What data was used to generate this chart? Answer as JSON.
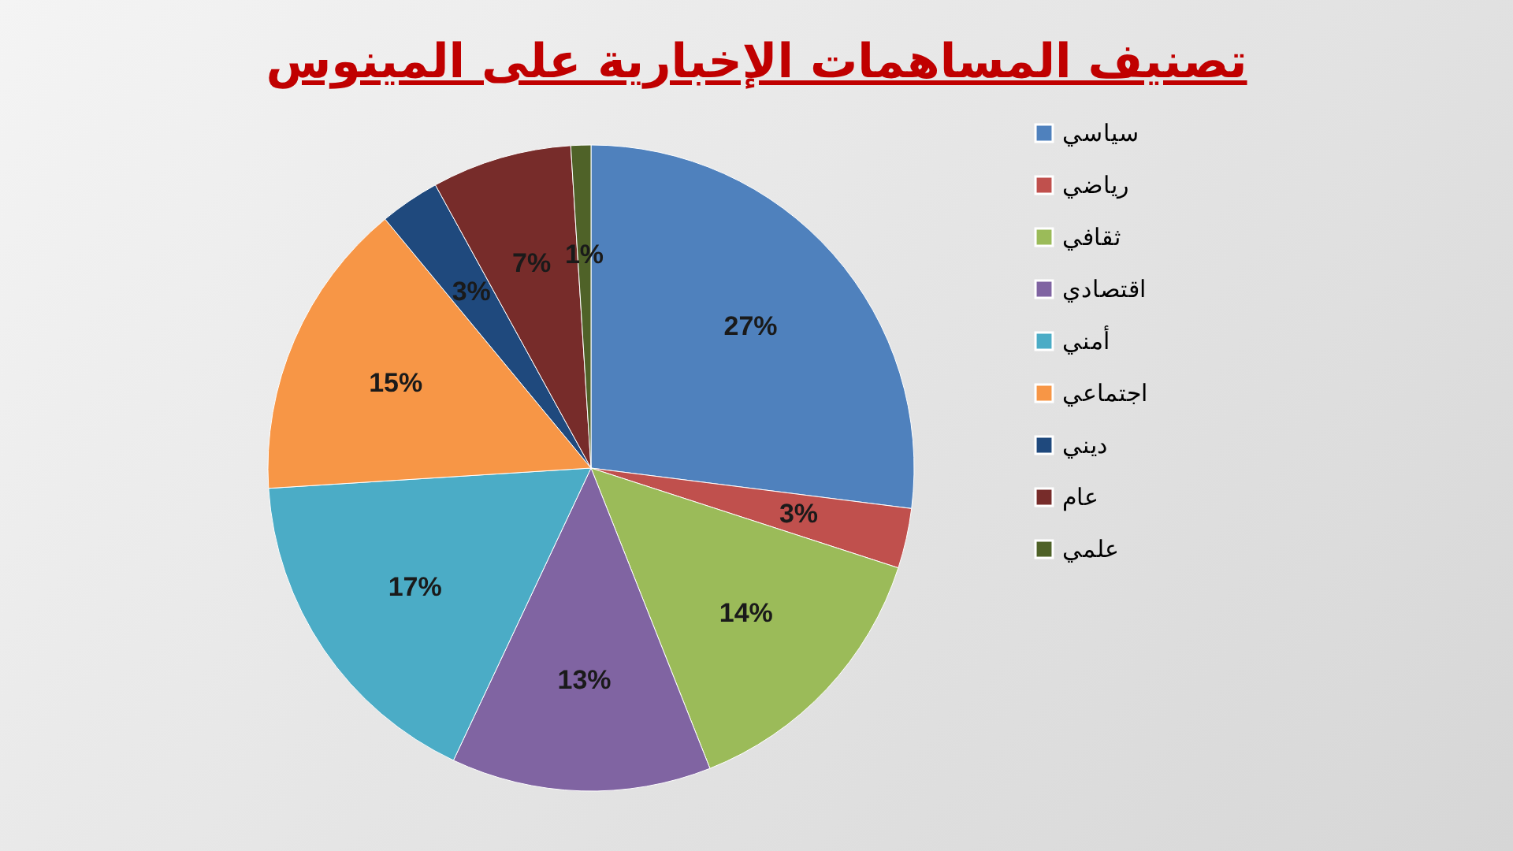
{
  "chart_data": {
    "type": "pie",
    "title": "تصنيف المساهمات الإخبارية على المينوس",
    "categories": [
      "سياسي",
      "رياضي",
      "ثقافي",
      "اقتصادي",
      "أمني",
      "اجتماعي",
      "ديني",
      "عام",
      "علمي"
    ],
    "values": [
      27,
      3,
      14,
      13,
      17,
      15,
      3,
      7,
      1
    ],
    "colors": [
      "#4f81bd",
      "#c0504d",
      "#9bbb59",
      "#8064a2",
      "#4bacc6",
      "#f79646",
      "#1f497d",
      "#772c2a",
      "#4f6228"
    ],
    "value_labels": [
      "27%",
      "3%",
      "14%",
      "13%",
      "17%",
      "15%",
      "3%",
      "7%",
      "1%"
    ],
    "legend": "right"
  }
}
